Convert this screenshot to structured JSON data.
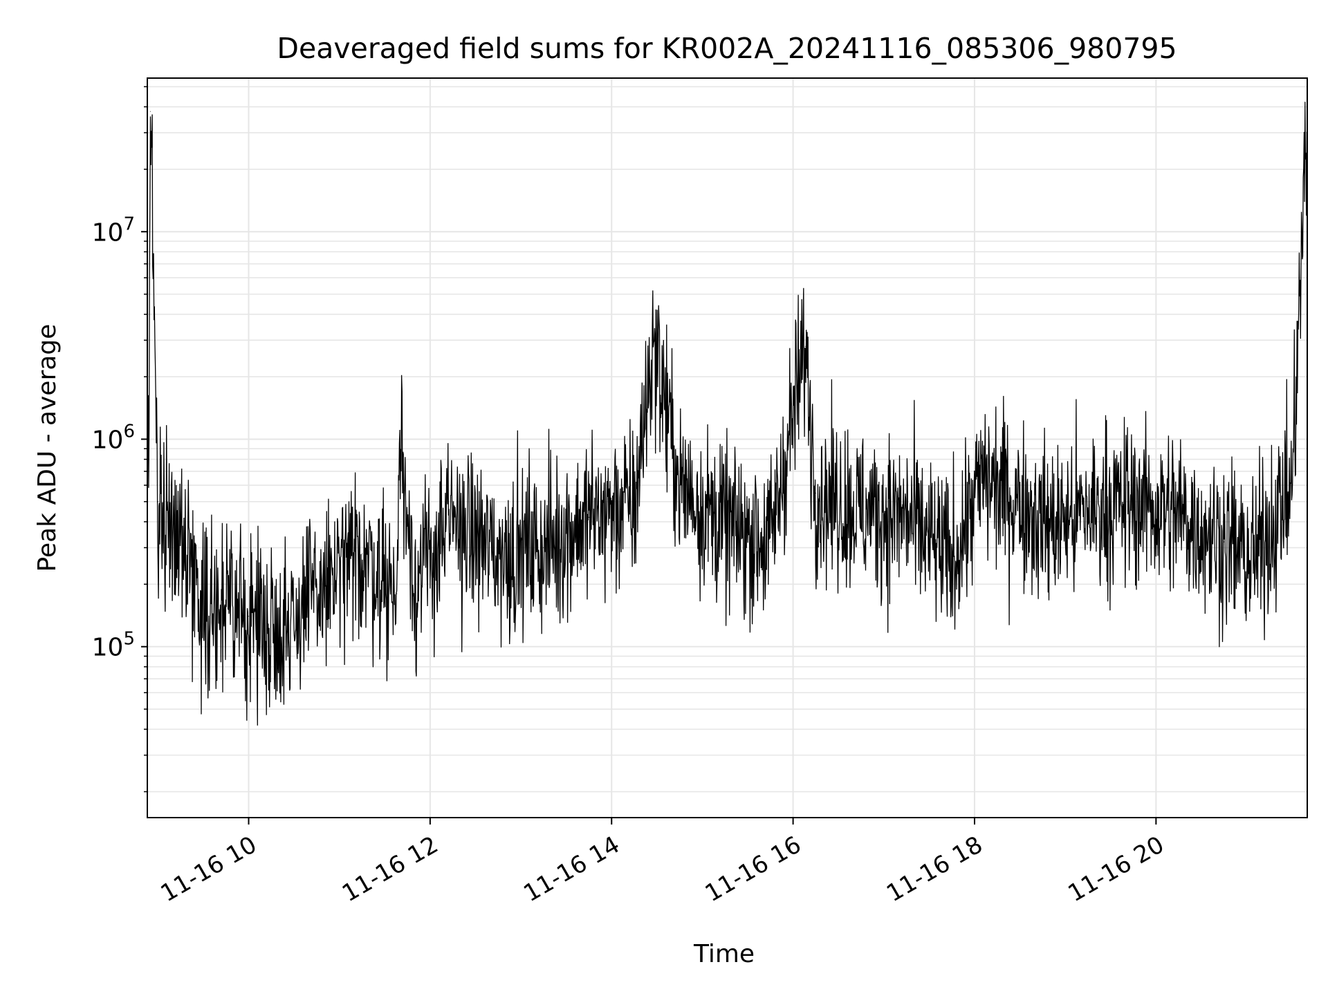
{
  "chart_data": {
    "type": "line",
    "title": "Deaveraged field sums for KR002A_20241116_085306_980795",
    "xlabel": "Time",
    "ylabel": "Peak ADU - average",
    "yscale": "log",
    "grid": "major and minor",
    "line_color": "#000000",
    "grid_color": "#e6e6e6",
    "xlim": [
      "2024-11-16 08:53",
      "2024-11-16 21:40"
    ],
    "ylim": [
      15000,
      55000000
    ],
    "x_ticks": [
      {
        "t": "2024-11-16 10:00",
        "label": "11-16 10"
      },
      {
        "t": "2024-11-16 12:00",
        "label": "11-16 12"
      },
      {
        "t": "2024-11-16 14:00",
        "label": "11-16 14"
      },
      {
        "t": "2024-11-16 16:00",
        "label": "11-16 16"
      },
      {
        "t": "2024-11-16 18:00",
        "label": "11-16 18"
      },
      {
        "t": "2024-11-16 20:00",
        "label": "11-16 20"
      }
    ],
    "y_ticks": [
      {
        "value": 100000,
        "base": "10",
        "exp": "5"
      },
      {
        "value": 1000000,
        "base": "10",
        "exp": "6"
      },
      {
        "value": 10000000,
        "base": "10",
        "exp": "7"
      }
    ],
    "series": [
      {
        "points": [
          {
            "x": "2024-11-16 08:54",
            "y": 700000
          },
          {
            "x": "2024-11-16 08:55",
            "y": 38000000
          },
          {
            "x": "2024-11-16 09:00",
            "y": 500000
          },
          {
            "x": "2024-11-16 09:15",
            "y": 350000
          },
          {
            "x": "2024-11-16 09:30",
            "y": 160000
          },
          {
            "x": "2024-11-16 10:00",
            "y": 140000
          },
          {
            "x": "2024-11-16 10:20",
            "y": 120000
          },
          {
            "x": "2024-11-16 10:45",
            "y": 180000
          },
          {
            "x": "2024-11-16 11:15",
            "y": 280000
          },
          {
            "x": "2024-11-16 11:38",
            "y": 180000
          },
          {
            "x": "2024-11-16 11:40",
            "y": 1000000
          },
          {
            "x": "2024-11-16 11:50",
            "y": 200000
          },
          {
            "x": "2024-11-16 12:15",
            "y": 400000
          },
          {
            "x": "2024-11-16 12:45",
            "y": 280000
          },
          {
            "x": "2024-11-16 13:15",
            "y": 300000
          },
          {
            "x": "2024-11-16 13:45",
            "y": 420000
          },
          {
            "x": "2024-11-16 14:15",
            "y": 480000
          },
          {
            "x": "2024-11-16 14:28",
            "y": 3000000
          },
          {
            "x": "2024-11-16 14:45",
            "y": 600000
          },
          {
            "x": "2024-11-16 15:15",
            "y": 380000
          },
          {
            "x": "2024-11-16 15:45",
            "y": 320000
          },
          {
            "x": "2024-11-16 16:08",
            "y": 2800000
          },
          {
            "x": "2024-11-16 16:15",
            "y": 550000
          },
          {
            "x": "2024-11-16 16:45",
            "y": 450000
          },
          {
            "x": "2024-11-16 17:15",
            "y": 420000
          },
          {
            "x": "2024-11-16 17:45",
            "y": 250000
          },
          {
            "x": "2024-11-16 18:05",
            "y": 650000
          },
          {
            "x": "2024-11-16 18:30",
            "y": 500000
          },
          {
            "x": "2024-11-16 18:50",
            "y": 380000
          },
          {
            "x": "2024-11-16 19:15",
            "y": 450000
          },
          {
            "x": "2024-11-16 19:45",
            "y": 500000
          },
          {
            "x": "2024-11-16 20:15",
            "y": 430000
          },
          {
            "x": "2024-11-16 20:45",
            "y": 320000
          },
          {
            "x": "2024-11-16 21:05",
            "y": 260000
          },
          {
            "x": "2024-11-16 21:30",
            "y": 600000
          },
          {
            "x": "2024-11-16 21:39",
            "y": 24000000
          }
        ]
      }
    ]
  }
}
